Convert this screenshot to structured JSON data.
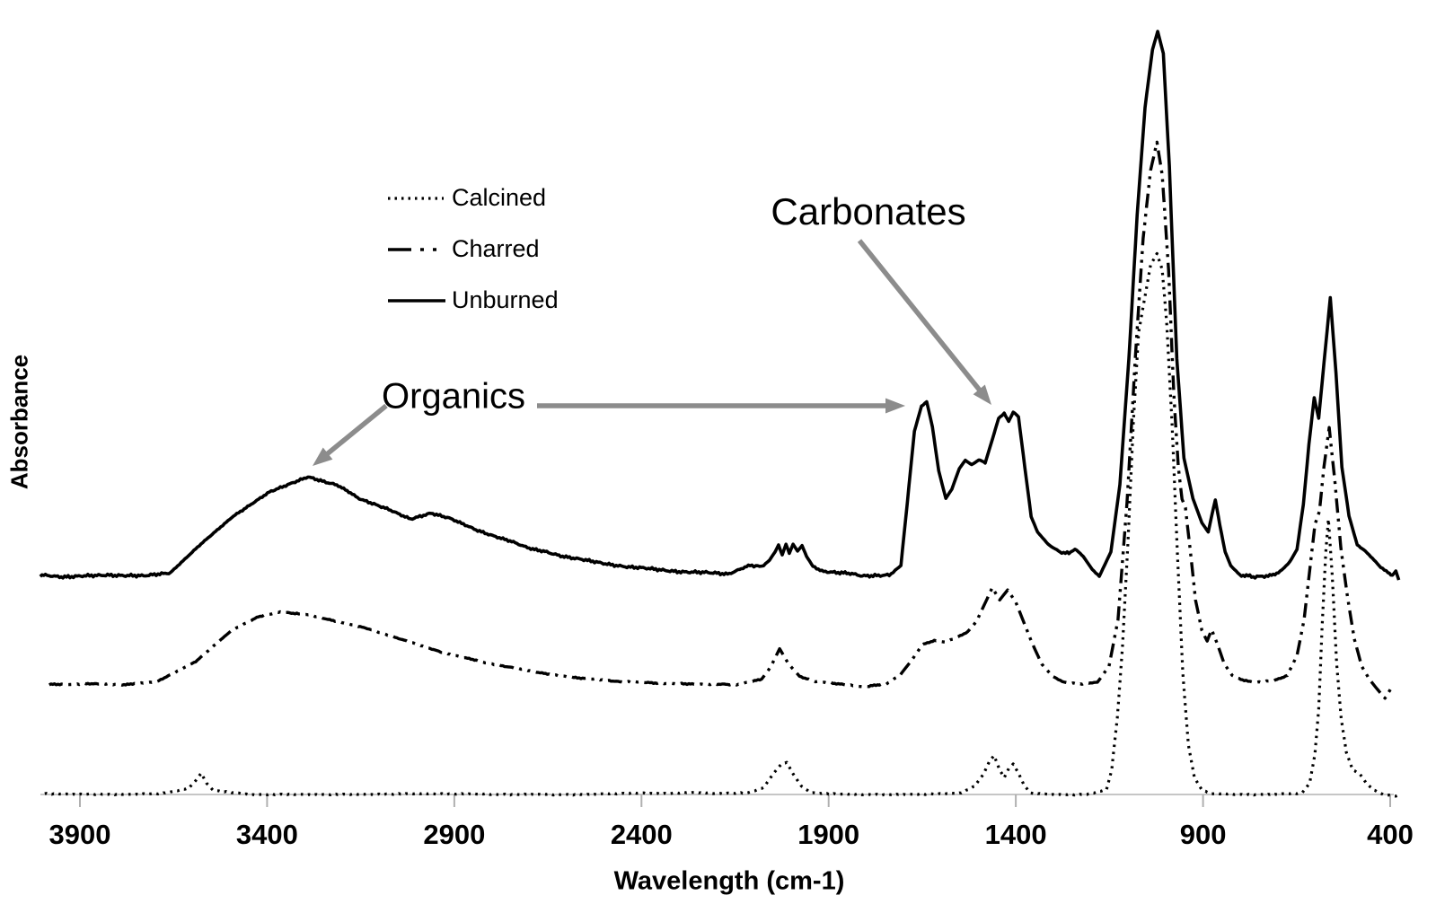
{
  "chart_data": {
    "type": "line",
    "title": "",
    "xlabel": "Wavelength (cm-1)",
    "ylabel": "Absorbance",
    "x_axis": {
      "ticks": [
        3900,
        3400,
        2900,
        2400,
        1900,
        1400,
        900,
        400
      ],
      "range": [
        4010,
        370
      ],
      "direction": "decreasing",
      "grid": false
    },
    "y_axis": {
      "range": [
        0,
        1.05
      ],
      "ticks": [],
      "note": "no numeric scale shown"
    },
    "legend": {
      "position": "upper-left-inset",
      "entries": [
        {
          "label": "Calcined",
          "style": "dotted"
        },
        {
          "label": "Charred",
          "style": "dash-dot-dot"
        },
        {
          "label": "Unburned",
          "style": "solid"
        }
      ]
    },
    "annotations": [
      {
        "text": "Carbonates",
        "points_to_wavenumber": 1420
      },
      {
        "text": "Organics",
        "points_to_wavenumbers": [
          3300,
          1650
        ]
      }
    ],
    "colors": {
      "trace": "#000000",
      "arrow": "#8c8c8c",
      "axis_line": "#c6c6c6",
      "tick": "#b0b0b0"
    },
    "series": [
      {
        "name": "Calcined",
        "style": "dotted",
        "points": [
          [
            3994,
            0.001
          ],
          [
            3826,
            0.0
          ],
          [
            3682,
            0.001
          ],
          [
            3610,
            0.008
          ],
          [
            3591,
            0.018
          ],
          [
            3576,
            0.028
          ],
          [
            3562,
            0.015
          ],
          [
            3543,
            0.005
          ],
          [
            3442,
            0.0
          ],
          [
            3202,
            0.0
          ],
          [
            2962,
            0.001
          ],
          [
            2722,
            0.0
          ],
          [
            2530,
            0.0
          ],
          [
            2403,
            0.002
          ],
          [
            2338,
            0.001
          ],
          [
            2266,
            0.003
          ],
          [
            2194,
            0.001
          ],
          [
            2115,
            0.002
          ],
          [
            2074,
            0.009
          ],
          [
            2045,
            0.029
          ],
          [
            2026,
            0.04
          ],
          [
            2012,
            0.042
          ],
          [
            1995,
            0.027
          ],
          [
            1973,
            0.011
          ],
          [
            1947,
            0.002
          ],
          [
            1834,
            0.0
          ],
          [
            1666,
            0.0
          ],
          [
            1546,
            0.002
          ],
          [
            1510,
            0.011
          ],
          [
            1486,
            0.027
          ],
          [
            1470,
            0.044
          ],
          [
            1458,
            0.051
          ],
          [
            1443,
            0.032
          ],
          [
            1431,
            0.022
          ],
          [
            1419,
            0.034
          ],
          [
            1407,
            0.04
          ],
          [
            1392,
            0.027
          ],
          [
            1378,
            0.012
          ],
          [
            1361,
            0.002
          ],
          [
            1306,
            0.0
          ],
          [
            1210,
            0.0
          ],
          [
            1158,
            0.006
          ],
          [
            1144,
            0.032
          ],
          [
            1129,
            0.1
          ],
          [
            1115,
            0.194
          ],
          [
            1100,
            0.335
          ],
          [
            1086,
            0.488
          ],
          [
            1072,
            0.606
          ],
          [
            1057,
            0.647
          ],
          [
            1040,
            0.694
          ],
          [
            1023,
            0.709
          ],
          [
            1009,
            0.688
          ],
          [
            997,
            0.618
          ],
          [
            983,
            0.488
          ],
          [
            968,
            0.312
          ],
          [
            954,
            0.159
          ],
          [
            939,
            0.065
          ],
          [
            923,
            0.022
          ],
          [
            903,
            0.006
          ],
          [
            879,
            0.001
          ],
          [
            802,
            0.0
          ],
          [
            707,
            0.0
          ],
          [
            635,
            0.002
          ],
          [
            615,
            0.015
          ],
          [
            601,
            0.053
          ],
          [
            591,
            0.112
          ],
          [
            582,
            0.218
          ],
          [
            572,
            0.318
          ],
          [
            565,
            0.361
          ],
          [
            555,
            0.288
          ],
          [
            543,
            0.171
          ],
          [
            531,
            0.1
          ],
          [
            517,
            0.055
          ],
          [
            500,
            0.032
          ],
          [
            481,
            0.027
          ],
          [
            464,
            0.015
          ],
          [
            445,
            0.006
          ],
          [
            418,
            0.0
          ],
          [
            390,
            -0.002
          ],
          [
            370,
            -0.002
          ]
        ]
      },
      {
        "name": "Charred",
        "style": "dash-dot-dot",
        "points": [
          [
            3982,
            0.144
          ],
          [
            3874,
            0.145
          ],
          [
            3778,
            0.144
          ],
          [
            3694,
            0.148
          ],
          [
            3591,
            0.174
          ],
          [
            3495,
            0.215
          ],
          [
            3423,
            0.233
          ],
          [
            3365,
            0.239
          ],
          [
            3286,
            0.235
          ],
          [
            3214,
            0.227
          ],
          [
            3137,
            0.218
          ],
          [
            3034,
            0.202
          ],
          [
            2931,
            0.186
          ],
          [
            2818,
            0.173
          ],
          [
            2722,
            0.164
          ],
          [
            2614,
            0.155
          ],
          [
            2458,
            0.148
          ],
          [
            2302,
            0.145
          ],
          [
            2146,
            0.144
          ],
          [
            2079,
            0.151
          ],
          [
            2055,
            0.167
          ],
          [
            2031,
            0.191
          ],
          [
            2007,
            0.171
          ],
          [
            1978,
            0.155
          ],
          [
            1935,
            0.148
          ],
          [
            1870,
            0.145
          ],
          [
            1806,
            0.141
          ],
          [
            1746,
            0.145
          ],
          [
            1710,
            0.156
          ],
          [
            1678,
            0.176
          ],
          [
            1650,
            0.196
          ],
          [
            1618,
            0.202
          ],
          [
            1589,
            0.2
          ],
          [
            1558,
            0.206
          ],
          [
            1529,
            0.213
          ],
          [
            1505,
            0.227
          ],
          [
            1481,
            0.252
          ],
          [
            1463,
            0.271
          ],
          [
            1443,
            0.255
          ],
          [
            1422,
            0.268
          ],
          [
            1400,
            0.252
          ],
          [
            1379,
            0.226
          ],
          [
            1357,
            0.199
          ],
          [
            1331,
            0.171
          ],
          [
            1302,
            0.155
          ],
          [
            1271,
            0.147
          ],
          [
            1223,
            0.145
          ],
          [
            1182,
            0.147
          ],
          [
            1151,
            0.168
          ],
          [
            1127,
            0.229
          ],
          [
            1103,
            0.382
          ],
          [
            1081,
            0.571
          ],
          [
            1060,
            0.729
          ],
          [
            1040,
            0.818
          ],
          [
            1023,
            0.855
          ],
          [
            1009,
            0.812
          ],
          [
            992,
            0.688
          ],
          [
            978,
            0.524
          ],
          [
            966,
            0.429
          ],
          [
            956,
            0.387
          ],
          [
            947,
            0.376
          ],
          [
            935,
            0.324
          ],
          [
            920,
            0.255
          ],
          [
            903,
            0.215
          ],
          [
            889,
            0.201
          ],
          [
            877,
            0.216
          ],
          [
            863,
            0.199
          ],
          [
            843,
            0.171
          ],
          [
            822,
            0.156
          ],
          [
            790,
            0.149
          ],
          [
            755,
            0.147
          ],
          [
            711,
            0.149
          ],
          [
            675,
            0.156
          ],
          [
            649,
            0.182
          ],
          [
            630,
            0.229
          ],
          [
            615,
            0.294
          ],
          [
            601,
            0.354
          ],
          [
            589,
            0.371
          ],
          [
            577,
            0.429
          ],
          [
            563,
            0.481
          ],
          [
            548,
            0.412
          ],
          [
            532,
            0.324
          ],
          [
            515,
            0.262
          ],
          [
            496,
            0.204
          ],
          [
            476,
            0.168
          ],
          [
            457,
            0.152
          ],
          [
            438,
            0.14
          ],
          [
            414,
            0.126
          ],
          [
            399,
            0.138
          ],
          [
            390,
            0.142
          ]
        ]
      },
      {
        "name": "Unburned",
        "style": "solid",
        "points": [
          [
            4006,
            0.287
          ],
          [
            3922,
            0.285
          ],
          [
            3826,
            0.288
          ],
          [
            3730,
            0.286
          ],
          [
            3658,
            0.291
          ],
          [
            3586,
            0.324
          ],
          [
            3490,
            0.365
          ],
          [
            3394,
            0.396
          ],
          [
            3291,
            0.416
          ],
          [
            3214,
            0.406
          ],
          [
            3154,
            0.388
          ],
          [
            3075,
            0.374
          ],
          [
            3017,
            0.361
          ],
          [
            2962,
            0.369
          ],
          [
            2914,
            0.362
          ],
          [
            2842,
            0.347
          ],
          [
            2770,
            0.335
          ],
          [
            2686,
            0.321
          ],
          [
            2578,
            0.309
          ],
          [
            2434,
            0.298
          ],
          [
            2290,
            0.292
          ],
          [
            2170,
            0.289
          ],
          [
            2110,
            0.3
          ],
          [
            2079,
            0.298
          ],
          [
            2058,
            0.307
          ],
          [
            2043,
            0.318
          ],
          [
            2034,
            0.327
          ],
          [
            2024,
            0.314
          ],
          [
            2014,
            0.328
          ],
          [
            2005,
            0.316
          ],
          [
            1995,
            0.328
          ],
          [
            1983,
            0.319
          ],
          [
            1971,
            0.326
          ],
          [
            1959,
            0.312
          ],
          [
            1942,
            0.299
          ],
          [
            1918,
            0.293
          ],
          [
            1870,
            0.291
          ],
          [
            1810,
            0.287
          ],
          [
            1738,
            0.287
          ],
          [
            1707,
            0.3
          ],
          [
            1690,
            0.382
          ],
          [
            1671,
            0.476
          ],
          [
            1652,
            0.509
          ],
          [
            1638,
            0.515
          ],
          [
            1623,
            0.482
          ],
          [
            1606,
            0.424
          ],
          [
            1587,
            0.388
          ],
          [
            1571,
            0.4
          ],
          [
            1551,
            0.427
          ],
          [
            1535,
            0.438
          ],
          [
            1518,
            0.432
          ],
          [
            1499,
            0.439
          ],
          [
            1482,
            0.434
          ],
          [
            1463,
            0.465
          ],
          [
            1446,
            0.493
          ],
          [
            1431,
            0.499
          ],
          [
            1419,
            0.489
          ],
          [
            1407,
            0.501
          ],
          [
            1393,
            0.495
          ],
          [
            1376,
            0.429
          ],
          [
            1359,
            0.364
          ],
          [
            1342,
            0.344
          ],
          [
            1314,
            0.328
          ],
          [
            1282,
            0.318
          ],
          [
            1258,
            0.316
          ],
          [
            1242,
            0.322
          ],
          [
            1220,
            0.312
          ],
          [
            1196,
            0.295
          ],
          [
            1177,
            0.286
          ],
          [
            1146,
            0.318
          ],
          [
            1122,
            0.406
          ],
          [
            1098,
            0.571
          ],
          [
            1076,
            0.759
          ],
          [
            1055,
            0.9
          ],
          [
            1035,
            0.976
          ],
          [
            1021,
            1.0
          ],
          [
            1006,
            0.971
          ],
          [
            990,
            0.824
          ],
          [
            970,
            0.571
          ],
          [
            951,
            0.441
          ],
          [
            927,
            0.388
          ],
          [
            903,
            0.356
          ],
          [
            886,
            0.344
          ],
          [
            877,
            0.365
          ],
          [
            867,
            0.386
          ],
          [
            855,
            0.353
          ],
          [
            841,
            0.318
          ],
          [
            826,
            0.3
          ],
          [
            802,
            0.288
          ],
          [
            766,
            0.285
          ],
          [
            726,
            0.286
          ],
          [
            694,
            0.292
          ],
          [
            668,
            0.305
          ],
          [
            649,
            0.321
          ],
          [
            632,
            0.38
          ],
          [
            617,
            0.459
          ],
          [
            603,
            0.52
          ],
          [
            591,
            0.493
          ],
          [
            577,
            0.565
          ],
          [
            560,
            0.651
          ],
          [
            545,
            0.553
          ],
          [
            529,
            0.429
          ],
          [
            510,
            0.365
          ],
          [
            488,
            0.327
          ],
          [
            471,
            0.321
          ],
          [
            452,
            0.312
          ],
          [
            430,
            0.3
          ],
          [
            406,
            0.291
          ],
          [
            394,
            0.287
          ],
          [
            385,
            0.293
          ],
          [
            377,
            0.281
          ]
        ]
      }
    ]
  }
}
